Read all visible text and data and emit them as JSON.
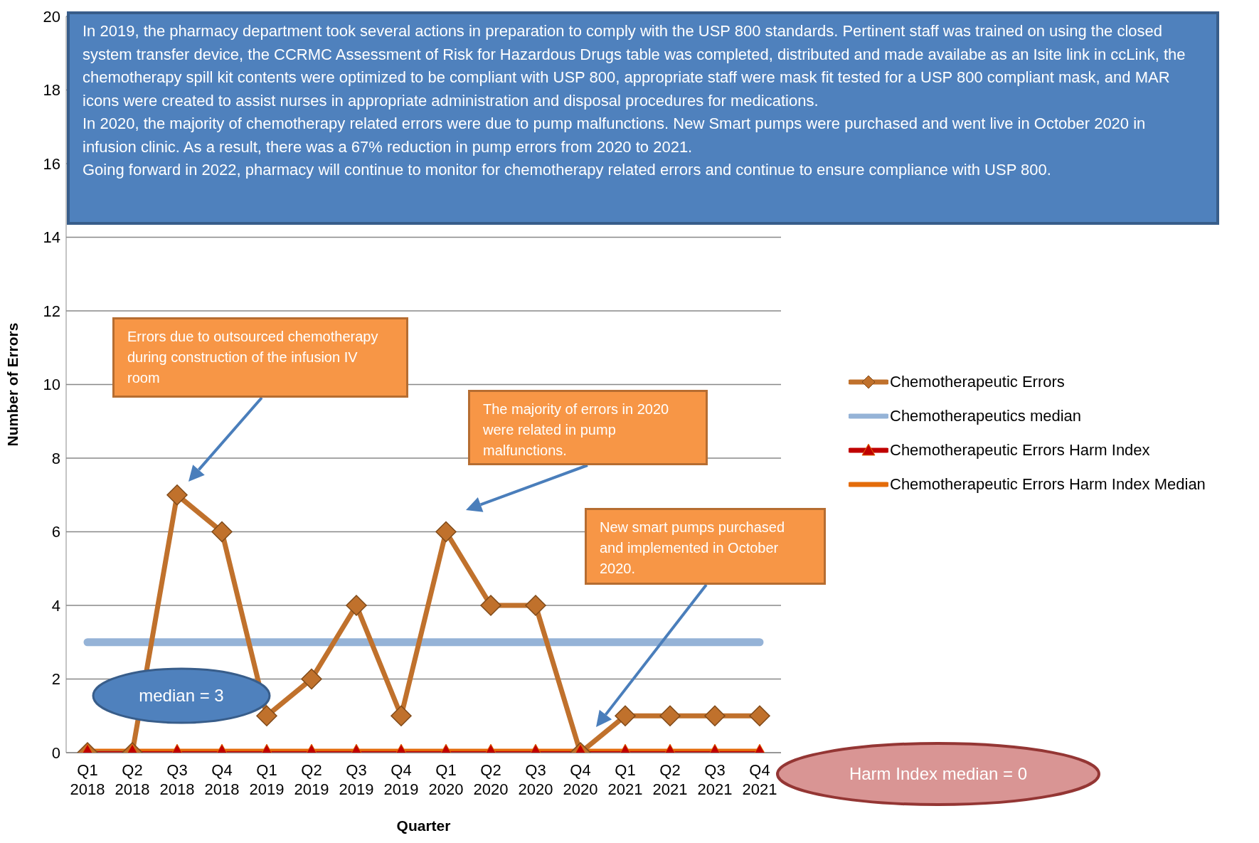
{
  "chart_data": {
    "type": "line",
    "xlabel": "Quarter",
    "ylabel": "Number of Errors",
    "categories": [
      "Q1 2018",
      "Q2 2018",
      "Q3 2018",
      "Q4 2018",
      "Q1 2019",
      "Q2 2019",
      "Q3 2019",
      "Q4 2019",
      "Q1 2020",
      "Q2 2020",
      "Q3 2020",
      "Q4 2020",
      "Q1 2021",
      "Q2 2021",
      "Q3 2021",
      "Q4 2021"
    ],
    "series": [
      {
        "name": "Chemotherapeutic Errors",
        "color": "#c0712c",
        "marker": "diamond",
        "values": [
          0,
          0,
          7,
          6,
          1,
          2,
          4,
          1,
          6,
          4,
          4,
          0,
          1,
          1,
          1,
          1
        ]
      },
      {
        "name": "Chemotherapeutics median",
        "color": "#95b3d7",
        "marker": "none",
        "values": [
          3,
          3,
          3,
          3,
          3,
          3,
          3,
          3,
          3,
          3,
          3,
          3,
          3,
          3,
          3,
          3
        ]
      },
      {
        "name": "Chemotherapeutic Errors Harm Index",
        "color": "#c00000",
        "marker": "triangle",
        "values": [
          0,
          0,
          0,
          0,
          0,
          0,
          0,
          0,
          0,
          0,
          0,
          0,
          0,
          0,
          0,
          0
        ]
      },
      {
        "name": "Chemotherapeutic Errors Harm Index Median",
        "color": "#e46c0a",
        "marker": "none",
        "values": [
          0,
          0,
          0,
          0,
          0,
          0,
          0,
          0,
          0,
          0,
          0,
          0,
          0,
          0,
          0,
          0
        ]
      }
    ],
    "ylim": [
      0,
      20
    ],
    "yticks": [
      0,
      2,
      4,
      6,
      8,
      10,
      12,
      14,
      16,
      18,
      20
    ],
    "grid": "y",
    "legend": "right",
    "annotations": [
      "In 2019, the pharmacy department took several actions in preparation to comply with the USP 800 standards. Pertinent staff was trained on using the closed system transfer device, the CCRMC Assessment of Risk for Hazardous Drugs table was completed, distributed and made availabe as an Isite link in ccLink, the chemotherapy spill kit contents were optimized to be compliant with USP 800, appropriate staff were mask fit tested for a USP 800 compliant mask, and MAR icons were created to assist nurses in appropriate administration and disposal procedures for medications.\nIn 2020, the majority of chemotherapy related errors were due to pump malfunctions. New Smart pumps were purchased and went live in October 2020 in infusion clinic. As a result, there was a 67% reduction in pump errors from 2020 to 2021.\nGoing forward in 2022, pharmacy will continue to monitor for chemotherapy related errors and continue to ensure compliance with USP 800.",
      "Errors due to outsourced chemotherapy during construction of the infusion IV room",
      "The majority of errors in 2020 were related in pump malfunctions.",
      "New smart pumps purchased and implemented in October 2020.",
      "median = 3",
      "Harm Index median = 0"
    ]
  }
}
